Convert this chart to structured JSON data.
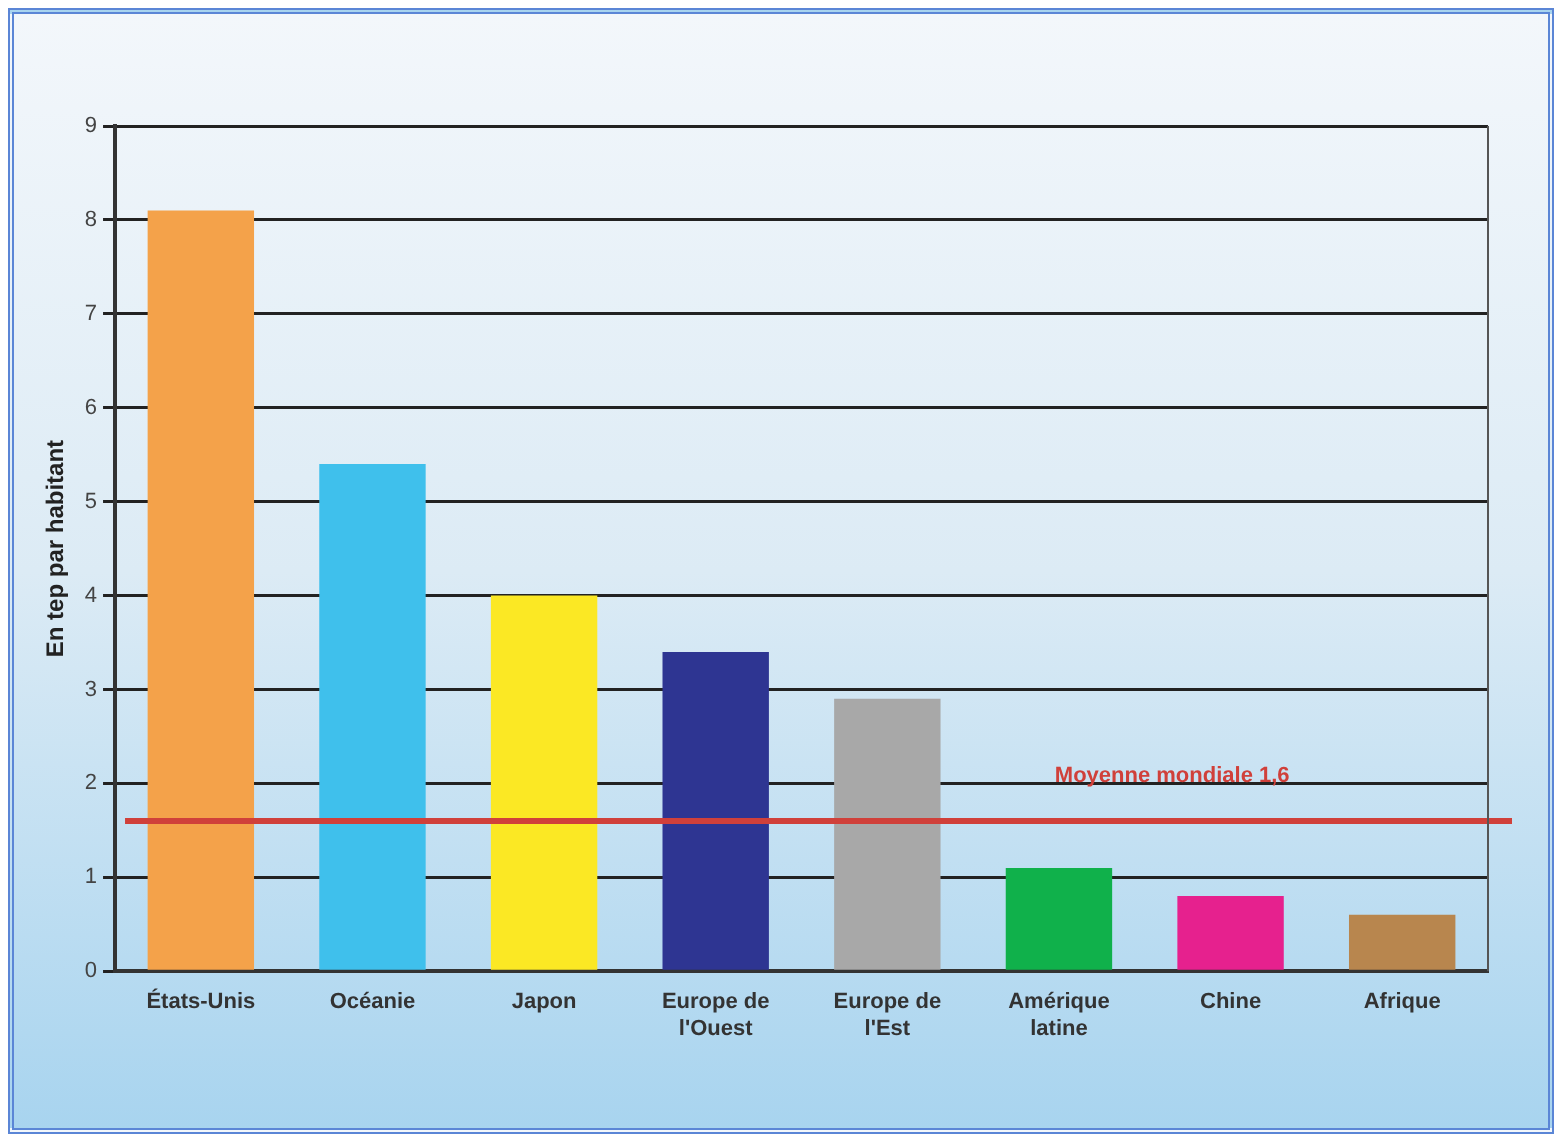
{
  "chart_data": {
    "type": "bar",
    "ylabel": "En tep par habitant",
    "categories": [
      "États-Unis",
      "Océanie",
      "Japon",
      "Europe de l'Ouest",
      "Europe de l'Est",
      "Amérique latine",
      "Chine",
      "Afrique"
    ],
    "values": [
      8.1,
      5.4,
      4.0,
      3.4,
      2.9,
      1.1,
      0.8,
      0.6
    ],
    "colors": [
      "#f4a24a",
      "#3fc0ec",
      "#fbe824",
      "#2e3592",
      "#a8a8a8",
      "#10b14b",
      "#e6218e",
      "#b8864e"
    ],
    "ylim": [
      0,
      9
    ],
    "yticks": [
      0,
      1,
      2,
      3,
      4,
      5,
      6,
      7,
      8,
      9
    ],
    "grid": "y",
    "legend": false,
    "ref_lines": [
      {
        "axis": "y",
        "value": 1.6,
        "label": "Moyenne mondiale 1,6",
        "color": "#d0403a"
      }
    ]
  }
}
